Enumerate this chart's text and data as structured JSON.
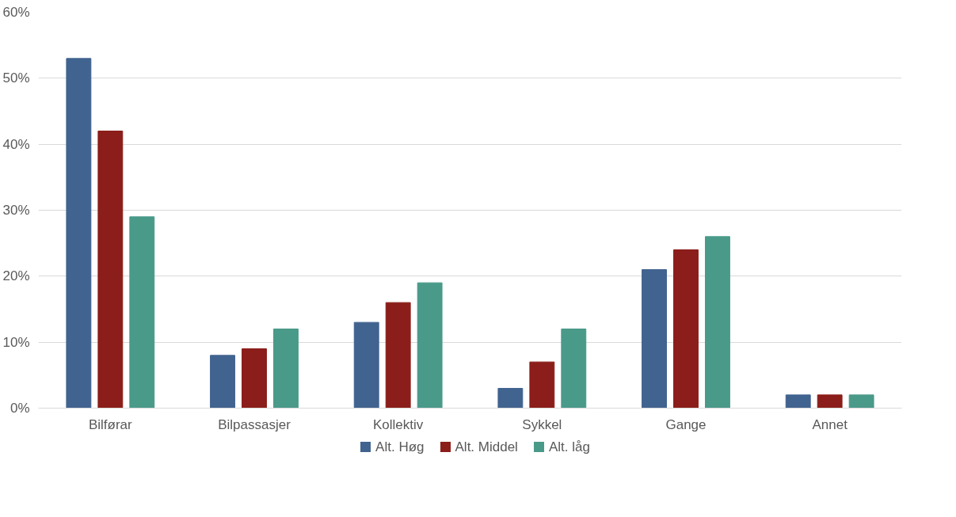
{
  "chart_data": {
    "type": "bar",
    "categories": [
      "Bilførar",
      "Bilpassasjer",
      "Kollektiv",
      "Sykkel",
      "Gange",
      "Annet"
    ],
    "series": [
      {
        "name": "Alt. Høg",
        "color": "#41638f",
        "values": [
          53,
          8,
          13,
          3,
          21,
          2
        ]
      },
      {
        "name": "Alt. Middel",
        "color": "#8b1e1a",
        "values": [
          42,
          9,
          16,
          7,
          24,
          2
        ]
      },
      {
        "name": "Alt. låg",
        "color": "#4a9a89",
        "values": [
          29,
          12,
          19,
          12,
          26,
          2
        ]
      }
    ],
    "ylim": [
      0,
      60
    ],
    "yticks": [
      {
        "value": 0,
        "label": "0%"
      },
      {
        "value": 10,
        "label": "10%"
      },
      {
        "value": 20,
        "label": "20%"
      },
      {
        "value": 30,
        "label": "30%"
      },
      {
        "value": 40,
        "label": "40%"
      },
      {
        "value": 50,
        "label": "50%"
      },
      {
        "value": 60,
        "label": "60%"
      }
    ],
    "grid": "y",
    "legend": "bottom"
  }
}
